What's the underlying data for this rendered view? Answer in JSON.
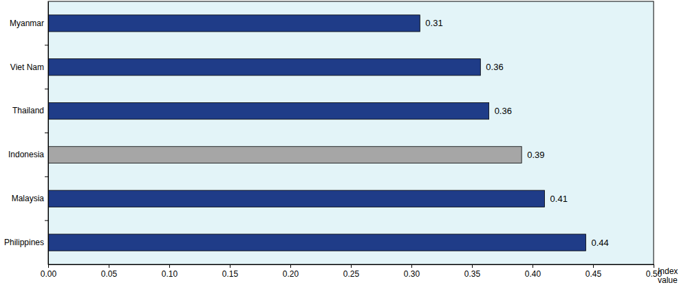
{
  "chart_data": {
    "type": "bar",
    "orientation": "horizontal",
    "categories": [
      "Myanmar",
      "Viet Nam",
      "Thailand",
      "Indonesia",
      "Malaysia",
      "Philippines"
    ],
    "values": [
      0.307,
      0.357,
      0.364,
      0.391,
      0.41,
      0.444
    ],
    "value_labels": [
      "0.31",
      "0.36",
      "0.36",
      "0.39",
      "0.41",
      "0.44"
    ],
    "colors": [
      "#1f3c88",
      "#1f3c88",
      "#1f3c88",
      "#a6a6a6",
      "#1f3c88",
      "#1f3c88"
    ],
    "x_label": "Index value",
    "xlim": [
      0,
      0.5
    ],
    "xticks": [
      {
        "value": 0,
        "label": "0.00"
      },
      {
        "value": 0.05,
        "label": "0.05"
      },
      {
        "value": 0.1,
        "label": "0.10"
      },
      {
        "value": 0.15,
        "label": "0.15"
      },
      {
        "value": 0.2,
        "label": "0.20"
      },
      {
        "value": 0.25,
        "label": "0.25"
      },
      {
        "value": 0.3,
        "label": "0.30"
      },
      {
        "value": 0.35,
        "label": "0.35"
      },
      {
        "value": 0.4,
        "label": "0.40"
      },
      {
        "value": 0.45,
        "label": "0.45"
      },
      {
        "value": 0.5,
        "label": "0.50"
      }
    ],
    "grid": false,
    "data_labels": true
  }
}
